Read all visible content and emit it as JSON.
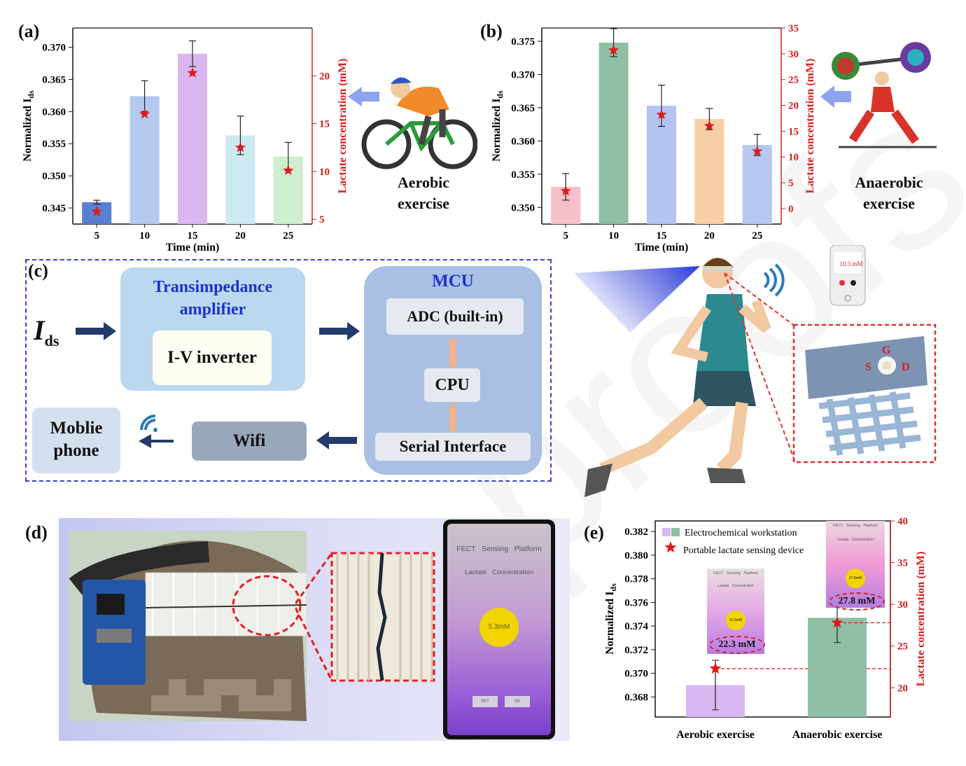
{
  "labels": {
    "a": "(a)",
    "b": "(b)",
    "c": "(c)",
    "d": "(d)",
    "e": "(e)"
  },
  "panel_a": {
    "ylabel": "Normalized I",
    "ylabel_sub": "ds",
    "y2label": "Lactate concentration (mM)",
    "xlabel": "Time (min)",
    "caption_line1": "Aerobic",
    "caption_line2": "exercise"
  },
  "panel_b": {
    "ylabel": "Normalized I",
    "ylabel_sub": "ds",
    "y2label": "Lactate concentration (mM)",
    "xlabel": "Time (min)",
    "caption_line1": "Anaerobic",
    "caption_line2": "exercise"
  },
  "panel_c": {
    "input_label": "I",
    "input_sub": "ds",
    "tia_title_line1": "Transimpedance",
    "tia_title_line2": "amplifier",
    "iv": "I-V inverter",
    "mcu": "MCU",
    "adc": "ADC (built-in)",
    "cpu": "CPU",
    "serial": "Serial Interface",
    "wifi": "Wifi",
    "phone_line1": "Moblie",
    "phone_line2": "phone",
    "phone_screen": "10.3 mM",
    "device_g": "G",
    "device_s": "S",
    "device_d": "D"
  },
  "panel_d": {
    "app_title": "FECT   Sensing   Platform",
    "app_sub": "Lactate   Concentration",
    "app_value": "5.3mM",
    "btn1": "SET",
    "btn2": "OK"
  },
  "panel_e": {
    "ylabel": "Normalized I",
    "ylabel_sub": "ds",
    "y2label": "Lactate concentration (mM)",
    "legend_bar": "Electrochemical workstation",
    "legend_star": "Portable lactate sensing device",
    "inset1_value": "22.3 mM",
    "inset2_value": "27.8 mM",
    "inset_app_title": "FECT   Sensing   Platform",
    "inset_app_sub": "Lactate   Concentration",
    "inset1_circle": "22.3mM",
    "inset2_circle": "27.8mM"
  },
  "chart_data": [
    {
      "type": "bar",
      "panel": "a",
      "categories": [
        "5",
        "10",
        "15",
        "20",
        "25"
      ],
      "values": [
        0.3459,
        0.3624,
        0.369,
        0.3563,
        0.353
      ],
      "errors": [
        0.0003,
        0.0024,
        0.002,
        0.003,
        0.0022
      ],
      "bar_colors": [
        "#5b7fd0",
        "#b5c8f0",
        "#d9b7f0",
        "#cde9f2",
        "#cdeecf"
      ],
      "series2_name": "Lactate concentration",
      "series2_values": [
        5.8,
        16.0,
        20.3,
        12.5,
        10.1
      ],
      "ylim": [
        0.3425,
        0.373
      ],
      "y2lim": [
        4.5,
        25
      ],
      "yticks": [
        0.345,
        0.35,
        0.355,
        0.36,
        0.365,
        0.37
      ],
      "y2ticks": [
        5,
        10,
        15,
        20
      ],
      "xlabel": "Time (min)",
      "ylabel": "Normalized Ids",
      "y2label": "Lactate concentration (mM)"
    },
    {
      "type": "bar",
      "panel": "b",
      "categories": [
        "5",
        "10",
        "15",
        "20",
        "25"
      ],
      "values": [
        0.3531,
        0.3748,
        0.3653,
        0.3633,
        0.3594
      ],
      "errors": [
        0.002,
        0.0021,
        0.0031,
        0.0016,
        0.0016
      ],
      "bar_colors": [
        "#f6bfc9",
        "#8fbfa5",
        "#b5c3f2",
        "#f7cfa6",
        "#b5c8f0"
      ],
      "series2_name": "Lactate concentration",
      "series2_values": [
        3.4,
        30.7,
        18.2,
        16.0,
        11.1
      ],
      "ylim": [
        0.3475,
        0.377
      ],
      "y2lim": [
        -3,
        35
      ],
      "yticks": [
        0.35,
        0.355,
        0.36,
        0.365,
        0.37,
        0.375
      ],
      "y2ticks": [
        0,
        5,
        10,
        15,
        20,
        25,
        30,
        35
      ],
      "xlabel": "Time (min)",
      "ylabel": "Normalized Ids",
      "y2label": "Lactate concentration (mM)"
    },
    {
      "type": "bar",
      "panel": "e",
      "categories": [
        "Aerobic exercise",
        "Anaerobic exercise"
      ],
      "values": [
        0.369,
        0.3747
      ],
      "errors": [
        0.0021,
        0.0021
      ],
      "bar_colors": [
        "#d9b7f0",
        "#8fbfa5"
      ],
      "series": [
        {
          "name": "Electrochemical workstation",
          "values": [
            0.369,
            0.3747
          ]
        },
        {
          "name": "Portable lactate sensing device",
          "values": [
            22.3,
            27.8
          ]
        }
      ],
      "ylim": [
        0.3663,
        0.3829
      ],
      "y2lim": [
        16.5,
        40
      ],
      "yticks": [
        0.368,
        0.37,
        0.372,
        0.374,
        0.376,
        0.378,
        0.38,
        0.382
      ],
      "y2ticks": [
        20,
        25,
        30,
        35,
        40
      ],
      "ylabel": "Normalized Ids",
      "y2label": "Lactate concentration (mM)"
    }
  ]
}
